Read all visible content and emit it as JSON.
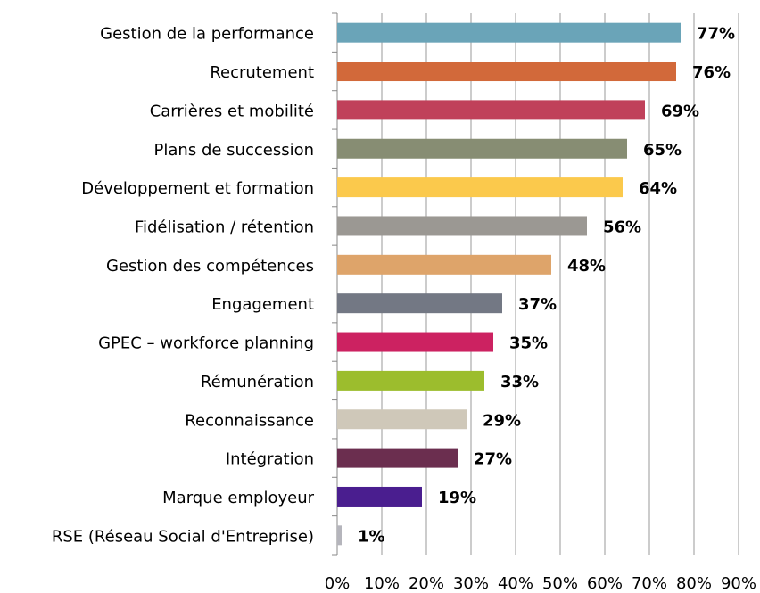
{
  "chart_data": {
    "type": "bar",
    "orientation": "horizontal",
    "categories": [
      "Gestion de la performance",
      "Recrutement",
      "Carrières et mobilité",
      "Plans de succession",
      "Développement et formation",
      "Fidélisation / rétention",
      "Gestion des compétences",
      "Engagement",
      "GPEC – workforce planning",
      "Rémunération",
      "Reconnaissance",
      "Intégration",
      "Marque employeur",
      "RSE (Réseau Social d'Entreprise)"
    ],
    "values": [
      77,
      76,
      69,
      65,
      64,
      56,
      48,
      37,
      35,
      33,
      29,
      27,
      19,
      1
    ],
    "value_labels": [
      "77%",
      "76%",
      "69%",
      "65%",
      "64%",
      "56%",
      "48%",
      "37%",
      "35%",
      "33%",
      "29%",
      "27%",
      "19%",
      "1%"
    ],
    "colors": [
      "#6aa4b8",
      "#d2693a",
      "#c0415a",
      "#878d73",
      "#fbc94c",
      "#9b9893",
      "#dea46a",
      "#737884",
      "#cc2261",
      "#9cbd2d",
      "#cfc8b9",
      "#6b2e4f",
      "#4a1e8f",
      "#b5b5bc"
    ],
    "xlim": [
      0,
      90
    ],
    "xticks": [
      {
        "value": 0,
        "label": "0%"
      },
      {
        "value": 10,
        "label": "10%"
      },
      {
        "value": 20,
        "label": "20%"
      },
      {
        "value": 30,
        "label": "30%"
      },
      {
        "value": 40,
        "label": "40%"
      },
      {
        "value": 50,
        "label": "50%"
      },
      {
        "value": 60,
        "label": "60%"
      },
      {
        "value": 70,
        "label": "70%"
      },
      {
        "value": 80,
        "label": "80%"
      },
      {
        "value": 90,
        "label": "90%"
      }
    ],
    "grid": true
  }
}
